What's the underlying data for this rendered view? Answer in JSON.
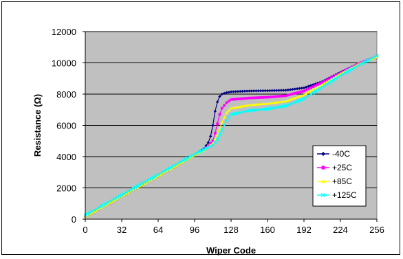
{
  "chart_data": {
    "type": "line",
    "title": "",
    "xlabel": "Wiper Code",
    "ylabel": "Resistance (Ω)",
    "xlim": [
      0,
      256
    ],
    "ylim": [
      0,
      12000
    ],
    "x_ticks": [
      0,
      32,
      64,
      96,
      128,
      160,
      192,
      224,
      256
    ],
    "y_ticks": [
      0,
      2000,
      4000,
      6000,
      8000,
      10000,
      12000
    ],
    "grid": "horizontal",
    "legend_position": "bottom-right",
    "plot_background": "#c0c0c0",
    "series": [
      {
        "name": "-40C",
        "color": "#000080",
        "marker": "diamond",
        "points": [
          [
            0,
            150
          ],
          [
            16,
            800
          ],
          [
            32,
            1450
          ],
          [
            48,
            2100
          ],
          [
            64,
            2750
          ],
          [
            80,
            3400
          ],
          [
            96,
            4100
          ],
          [
            104,
            4500
          ],
          [
            108,
            4900
          ],
          [
            110,
            5300
          ],
          [
            112,
            6000
          ],
          [
            114,
            6900
          ],
          [
            116,
            7500
          ],
          [
            118,
            7850
          ],
          [
            120,
            8000
          ],
          [
            124,
            8100
          ],
          [
            128,
            8150
          ],
          [
            144,
            8200
          ],
          [
            160,
            8220
          ],
          [
            176,
            8250
          ],
          [
            192,
            8400
          ],
          [
            208,
            8800
          ],
          [
            224,
            9400
          ],
          [
            240,
            9950
          ],
          [
            256,
            10400
          ]
        ]
      },
      {
        "name": "+25C",
        "color": "#ff00ff",
        "marker": "square",
        "points": [
          [
            0,
            150
          ],
          [
            16,
            800
          ],
          [
            32,
            1450
          ],
          [
            48,
            2100
          ],
          [
            64,
            2750
          ],
          [
            80,
            3400
          ],
          [
            96,
            4100
          ],
          [
            104,
            4450
          ],
          [
            108,
            4700
          ],
          [
            112,
            5000
          ],
          [
            114,
            5500
          ],
          [
            116,
            6100
          ],
          [
            118,
            6700
          ],
          [
            120,
            7100
          ],
          [
            124,
            7450
          ],
          [
            128,
            7650
          ],
          [
            144,
            7750
          ],
          [
            160,
            7800
          ],
          [
            176,
            7900
          ],
          [
            192,
            8200
          ],
          [
            208,
            8750
          ],
          [
            224,
            9350
          ],
          [
            240,
            9950
          ],
          [
            256,
            10400
          ]
        ]
      },
      {
        "name": "+85C",
        "color": "#ffff00",
        "marker": "triangle",
        "points": [
          [
            0,
            150
          ],
          [
            16,
            800
          ],
          [
            32,
            1450
          ],
          [
            48,
            2100
          ],
          [
            64,
            2750
          ],
          [
            80,
            3400
          ],
          [
            96,
            4100
          ],
          [
            104,
            4400
          ],
          [
            112,
            4850
          ],
          [
            116,
            5400
          ],
          [
            120,
            6200
          ],
          [
            124,
            6800
          ],
          [
            128,
            7100
          ],
          [
            144,
            7300
          ],
          [
            160,
            7400
          ],
          [
            176,
            7550
          ],
          [
            192,
            7950
          ],
          [
            208,
            8600
          ],
          [
            224,
            9300
          ],
          [
            240,
            9900
          ],
          [
            256,
            10400
          ]
        ]
      },
      {
        "name": "+125C",
        "color": "#00ffff",
        "marker": "x",
        "points": [
          [
            0,
            250
          ],
          [
            16,
            900
          ],
          [
            32,
            1550
          ],
          [
            48,
            2200
          ],
          [
            64,
            2850
          ],
          [
            80,
            3500
          ],
          [
            96,
            4150
          ],
          [
            104,
            4450
          ],
          [
            112,
            4750
          ],
          [
            116,
            5100
          ],
          [
            120,
            5700
          ],
          [
            124,
            6300
          ],
          [
            128,
            6700
          ],
          [
            144,
            6950
          ],
          [
            160,
            7050
          ],
          [
            176,
            7250
          ],
          [
            192,
            7700
          ],
          [
            208,
            8450
          ],
          [
            224,
            9200
          ],
          [
            240,
            9850
          ],
          [
            256,
            10450
          ]
        ]
      }
    ]
  }
}
